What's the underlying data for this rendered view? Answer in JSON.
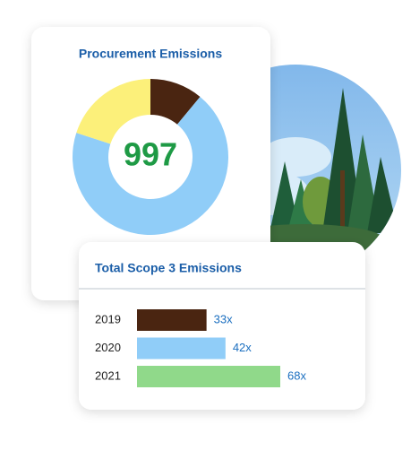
{
  "chart_data": [
    {
      "type": "donut",
      "title": "Procurement Emissions",
      "center_label": "997",
      "values": [
        11,
        69,
        20
      ],
      "colors": [
        "#4a2511",
        "#90cdf8",
        "#fcf07a"
      ]
    },
    {
      "type": "hbar",
      "title": "Total Scope 3 Emissions",
      "categories": [
        "2019",
        "2020",
        "2021"
      ],
      "values": [
        33,
        42,
        68
      ],
      "value_labels": [
        "33x",
        "42x",
        "68x"
      ],
      "colors": [
        "#4a2511",
        "#90cdf8",
        "#90d98a"
      ]
    }
  ]
}
